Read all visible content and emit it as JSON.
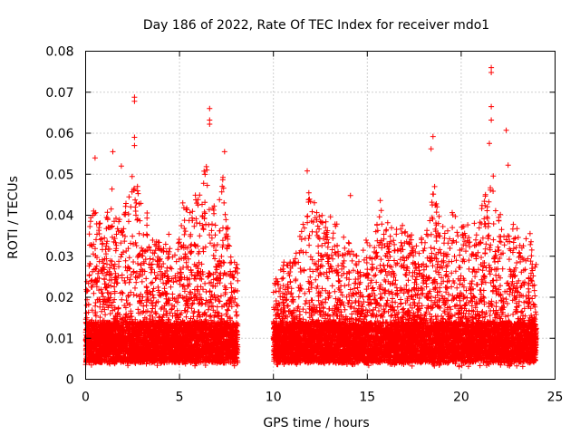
{
  "chart_data": {
    "type": "scatter",
    "title": "Day 186 of 2022, Rate Of TEC Index for receiver mdo1",
    "xlabel": "GPS time / hours",
    "ylabel": "ROTI / TECUs",
    "xlim": [
      0,
      25
    ],
    "ylim": [
      0,
      0.08
    ],
    "xticks": [
      0,
      5,
      10,
      15,
      20,
      25
    ],
    "yticks": [
      0,
      0.01,
      0.02,
      0.03,
      0.04,
      0.05,
      0.06,
      0.07,
      0.08
    ],
    "xtick_labels": [
      "0",
      "5",
      "10",
      "15",
      "20",
      "25"
    ],
    "ytick_labels": [
      "0",
      "0.01",
      "0.02",
      "0.03",
      "0.04",
      "0.05",
      "0.06",
      "0.07",
      "0.08"
    ],
    "grid": true,
    "marker": "plus",
    "series_color": "#ff0000",
    "segments": [
      {
        "x_range": [
          0.0,
          8.1
        ]
      },
      {
        "x_range": [
          10.0,
          24.0
        ]
      }
    ],
    "notable_points": [
      {
        "x": 2.6,
        "y": 0.0688
      },
      {
        "x": 2.6,
        "y": 0.0678
      },
      {
        "x": 2.6,
        "y": 0.059
      },
      {
        "x": 2.6,
        "y": 0.057
      },
      {
        "x": 6.6,
        "y": 0.066
      },
      {
        "x": 6.6,
        "y": 0.0632
      },
      {
        "x": 6.6,
        "y": 0.0622
      },
      {
        "x": 7.4,
        "y": 0.0555
      },
      {
        "x": 1.45,
        "y": 0.0555
      },
      {
        "x": 0.5,
        "y": 0.054
      },
      {
        "x": 1.9,
        "y": 0.052
      },
      {
        "x": 11.8,
        "y": 0.0508
      },
      {
        "x": 14.1,
        "y": 0.0448
      },
      {
        "x": 18.5,
        "y": 0.0592
      },
      {
        "x": 18.4,
        "y": 0.0562
      },
      {
        "x": 21.6,
        "y": 0.076
      },
      {
        "x": 21.6,
        "y": 0.0748
      },
      {
        "x": 21.6,
        "y": 0.0665
      },
      {
        "x": 21.6,
        "y": 0.0632
      },
      {
        "x": 21.5,
        "y": 0.0575
      },
      {
        "x": 22.4,
        "y": 0.0607
      },
      {
        "x": 22.5,
        "y": 0.0522
      }
    ],
    "envelope": [
      [
        0.0,
        0.036
      ],
      [
        0.3,
        0.04
      ],
      [
        0.5,
        0.046
      ],
      [
        0.8,
        0.036
      ],
      [
        1.0,
        0.038
      ],
      [
        1.3,
        0.045
      ],
      [
        1.5,
        0.05
      ],
      [
        1.8,
        0.044
      ],
      [
        2.0,
        0.04
      ],
      [
        2.3,
        0.046
      ],
      [
        2.6,
        0.052
      ],
      [
        2.9,
        0.044
      ],
      [
        3.2,
        0.042
      ],
      [
        3.5,
        0.036
      ],
      [
        3.8,
        0.034
      ],
      [
        4.1,
        0.032
      ],
      [
        4.4,
        0.034
      ],
      [
        4.7,
        0.03
      ],
      [
        5.0,
        0.036
      ],
      [
        5.2,
        0.046
      ],
      [
        5.5,
        0.04
      ],
      [
        5.8,
        0.044
      ],
      [
        6.1,
        0.05
      ],
      [
        6.4,
        0.053
      ],
      [
        6.7,
        0.05
      ],
      [
        7.0,
        0.042
      ],
      [
        7.3,
        0.05
      ],
      [
        7.6,
        0.036
      ],
      [
        7.9,
        0.034
      ],
      [
        8.1,
        0.03
      ],
      [
        10.0,
        0.024
      ],
      [
        10.4,
        0.028
      ],
      [
        10.8,
        0.03
      ],
      [
        11.2,
        0.032
      ],
      [
        11.6,
        0.04
      ],
      [
        11.9,
        0.046
      ],
      [
        12.3,
        0.042
      ],
      [
        12.6,
        0.04
      ],
      [
        13.0,
        0.038
      ],
      [
        13.3,
        0.042
      ],
      [
        13.7,
        0.032
      ],
      [
        14.1,
        0.034
      ],
      [
        14.5,
        0.03
      ],
      [
        14.9,
        0.034
      ],
      [
        15.3,
        0.032
      ],
      [
        15.7,
        0.044
      ],
      [
        16.0,
        0.04
      ],
      [
        16.4,
        0.036
      ],
      [
        16.8,
        0.038
      ],
      [
        17.2,
        0.036
      ],
      [
        17.6,
        0.034
      ],
      [
        18.0,
        0.036
      ],
      [
        18.4,
        0.05
      ],
      [
        18.8,
        0.04
      ],
      [
        19.2,
        0.036
      ],
      [
        19.6,
        0.042
      ],
      [
        20.0,
        0.036
      ],
      [
        20.4,
        0.042
      ],
      [
        20.8,
        0.038
      ],
      [
        21.2,
        0.044
      ],
      [
        21.5,
        0.05
      ],
      [
        21.8,
        0.046
      ],
      [
        22.1,
        0.04
      ],
      [
        22.4,
        0.036
      ],
      [
        22.8,
        0.04
      ],
      [
        23.2,
        0.034
      ],
      [
        23.6,
        0.036
      ],
      [
        24.0,
        0.03
      ]
    ],
    "baseline_range": [
      0.004,
      0.014
    ]
  }
}
